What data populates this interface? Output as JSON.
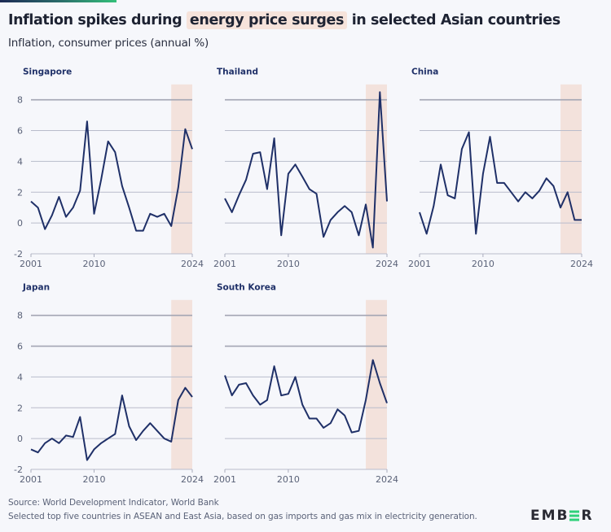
{
  "header": {
    "title_before": "Inflation spikes during",
    "title_highlight": "energy price surges",
    "title_after": "in selected Asian countries",
    "subtitle": "Inflation, consumer prices (annual %)"
  },
  "footer": {
    "source": "Source: World Development Indicator, World Bank",
    "note": "Selected top five countries in ASEAN and East Asia, based on gas imports and gas mix in electricity generation.",
    "logo": "EMBER"
  },
  "colors": {
    "line": "#1f3068",
    "shade": "#f3e2dc",
    "grid": "#a9acbd",
    "highlight": "#f6e3db",
    "logo_accent": "#2fd17a"
  },
  "chart_data": {
    "type": "line",
    "layout": "small-multiples",
    "ylabel": "Inflation, consumer prices (annual %)",
    "x": [
      2001,
      2002,
      2003,
      2004,
      2005,
      2006,
      2007,
      2008,
      2009,
      2010,
      2011,
      2012,
      2013,
      2014,
      2015,
      2016,
      2017,
      2018,
      2019,
      2020,
      2021,
      2022,
      2023,
      2024
    ],
    "x_ticks": [
      "2001",
      "2010",
      "2024"
    ],
    "y_ticks": [
      "8",
      "6",
      "4",
      "2",
      "0",
      "-2"
    ],
    "ylim": [
      -2,
      9
    ],
    "grid": true,
    "shaded_period": [
      2021,
      2024
    ],
    "panels": [
      {
        "name": "Singapore",
        "values": [
          1.4,
          1.0,
          -0.4,
          0.5,
          1.7,
          0.4,
          1.0,
          2.1,
          6.6,
          0.6,
          2.8,
          5.3,
          4.6,
          2.4,
          1.0,
          -0.5,
          -0.5,
          0.6,
          0.4,
          0.6,
          -0.2,
          2.3,
          6.1,
          4.8
        ]
      },
      {
        "name": "Thailand",
        "values": [
          1.6,
          0.7,
          1.8,
          2.8,
          4.5,
          4.6,
          2.2,
          5.5,
          -0.8,
          3.2,
          3.8,
          3.0,
          2.2,
          1.9,
          -0.9,
          0.2,
          0.7,
          1.1,
          0.7,
          -0.8,
          1.2,
          -1.6,
          8.5,
          1.4
        ]
      },
      {
        "name": "China",
        "values": [
          0.7,
          -0.7,
          1.1,
          3.8,
          1.8,
          1.6,
          4.8,
          5.9,
          -0.7,
          3.2,
          5.6,
          2.6,
          2.6,
          2.0,
          1.4,
          2.0,
          1.6,
          2.1,
          2.9,
          2.4,
          1.0,
          2.0,
          0.2,
          0.2
        ]
      },
      {
        "name": "Japan",
        "values": [
          -0.7,
          -0.9,
          -0.3,
          0.0,
          -0.3,
          0.2,
          0.1,
          1.4,
          -1.4,
          -0.7,
          -0.3,
          0.0,
          0.3,
          2.8,
          0.8,
          -0.1,
          0.5,
          1.0,
          0.5,
          0.0,
          -0.2,
          2.5,
          3.3,
          2.7
        ]
      },
      {
        "name": "South Korea",
        "values": [
          4.1,
          2.8,
          3.5,
          3.6,
          2.8,
          2.2,
          2.5,
          4.7,
          2.8,
          2.9,
          4.0,
          2.2,
          1.3,
          1.3,
          0.7,
          1.0,
          1.9,
          1.5,
          0.4,
          0.5,
          2.5,
          5.1,
          3.6,
          2.3
        ]
      }
    ]
  }
}
